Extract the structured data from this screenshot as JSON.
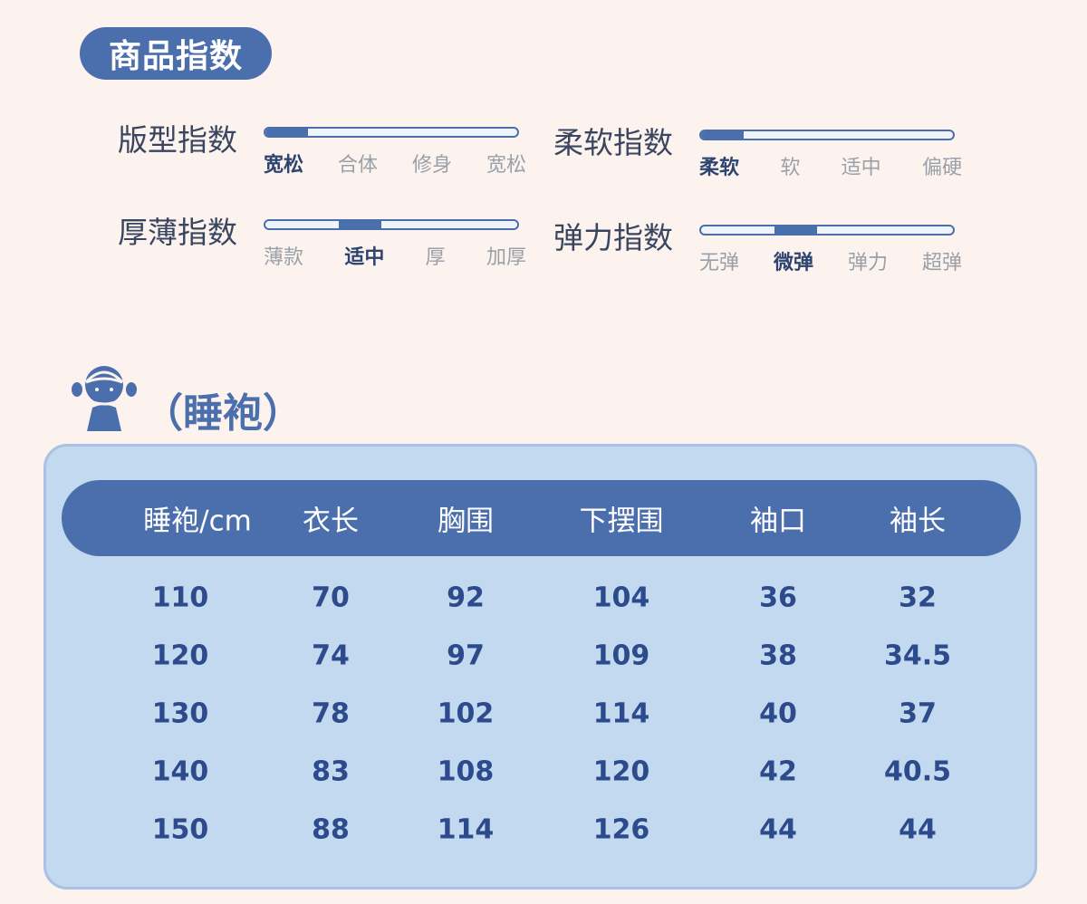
{
  "section_title": "商品指数",
  "indices": [
    {
      "label": "版型指数",
      "options": [
        "宽松",
        "合体",
        "修身",
        "宽松"
      ],
      "selected": 0
    },
    {
      "label": "柔软指数",
      "options": [
        "柔软",
        "软",
        "适中",
        "偏硬"
      ],
      "selected": 0
    },
    {
      "label": "厚薄指数",
      "options": [
        "薄款",
        "适中",
        "厚",
        "加厚"
      ],
      "selected": 1
    },
    {
      "label": "弹力指数",
      "options": [
        "无弹",
        "微弹",
        "弹力",
        "超弹"
      ],
      "selected": 1
    }
  ],
  "size_section": {
    "icon": "girl-avatar-icon",
    "title": "（睡袍）"
  },
  "table": {
    "headers": [
      "睡袍/cm",
      "衣长",
      "胸围",
      "下摆围",
      "袖口",
      "袖长"
    ],
    "rows": [
      [
        "110",
        "70",
        "92",
        "104",
        "36",
        "32"
      ],
      [
        "120",
        "74",
        "97",
        "109",
        "38",
        "34.5"
      ],
      [
        "130",
        "78",
        "102",
        "114",
        "40",
        "37"
      ],
      [
        "140",
        "83",
        "108",
        "120",
        "42",
        "40.5"
      ],
      [
        "150",
        "88",
        "114",
        "126",
        "44",
        "44"
      ]
    ]
  },
  "colors": {
    "accent": "#4b6fad",
    "panel": "#c3d9ef",
    "text": "#2d4a8c",
    "background": "#fcf3ef"
  }
}
